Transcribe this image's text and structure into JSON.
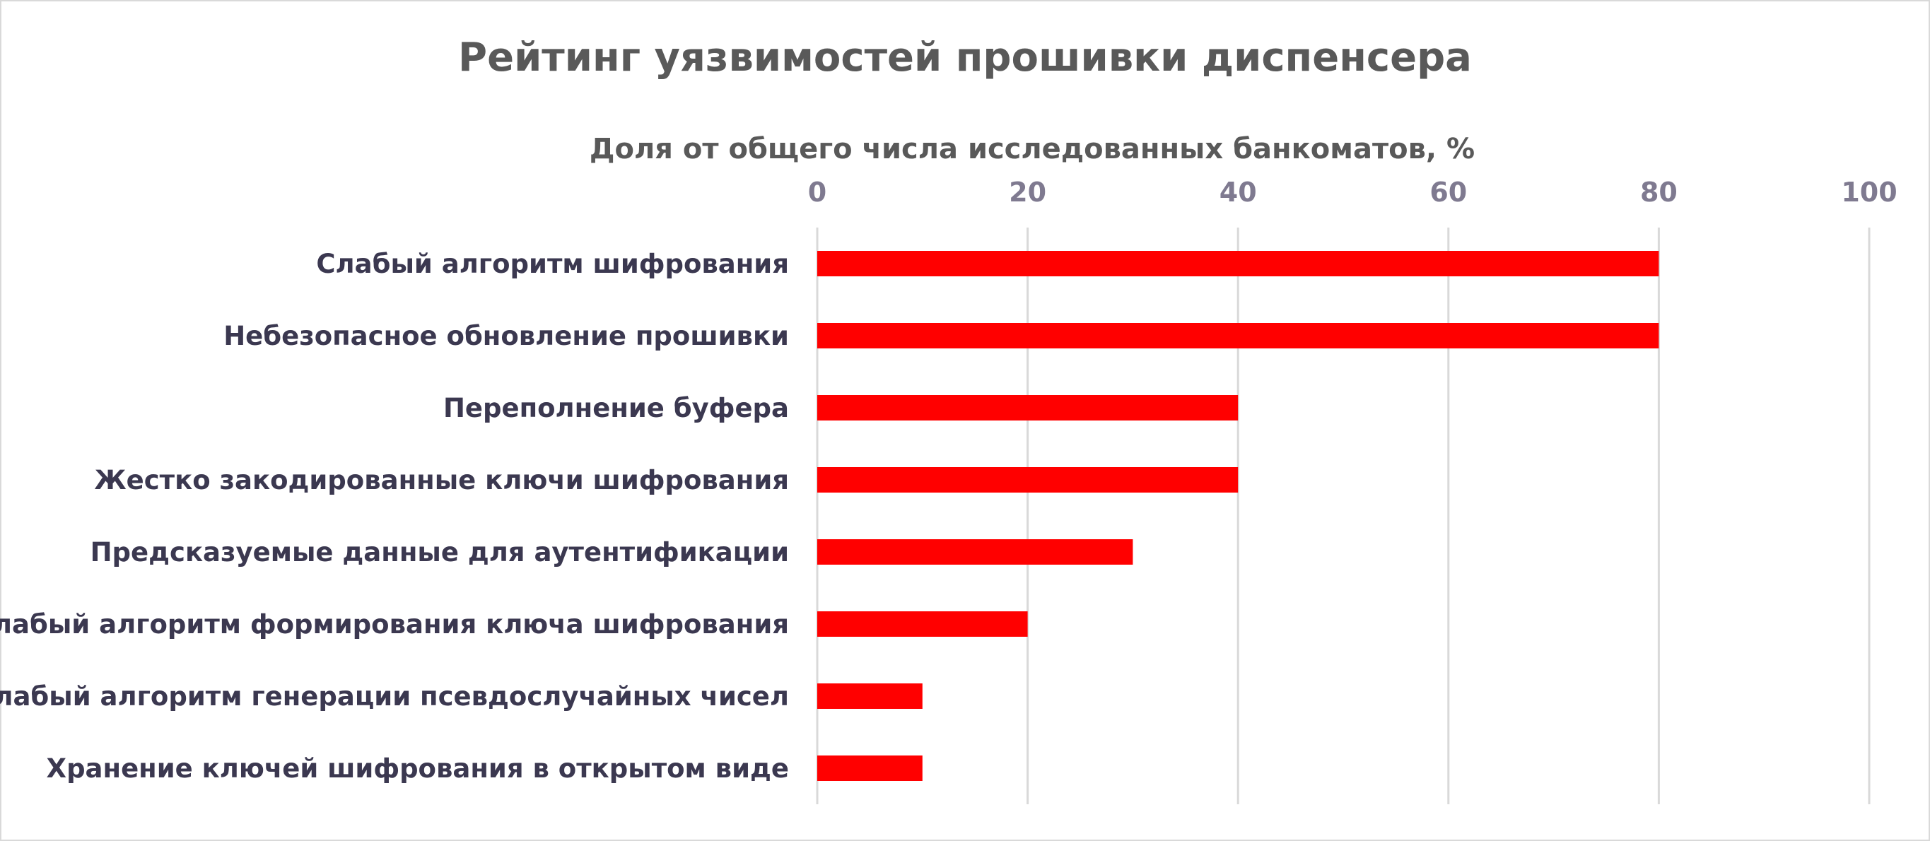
{
  "chart_data": {
    "type": "bar",
    "orientation": "horizontal",
    "title": "Рейтинг уязвимостей прошивки диспенсера",
    "xlabel": "Доля от общего числа исследованных банкоматов, %",
    "ylabel": "",
    "xlim": [
      0,
      100
    ],
    "ticks": [
      0,
      20,
      40,
      60,
      80,
      100
    ],
    "axis_position": "top",
    "grid": true,
    "bar_color": "#ff0000",
    "categories": [
      "Слабый алгоритм шифрования",
      "Небезопасное обновление прошивки",
      "Переполнение буфера",
      "Жестко закодированные ключи шифрования",
      "Предсказуемые данные для аутентификации",
      "Слабый алгоритм формирования ключа шифрования",
      "Слабый алгоритм генерации псевдослучайных чисел",
      "Хранение ключей шифрования в открытом виде"
    ],
    "values": [
      80,
      80,
      40,
      40,
      30,
      20,
      10,
      10
    ]
  }
}
